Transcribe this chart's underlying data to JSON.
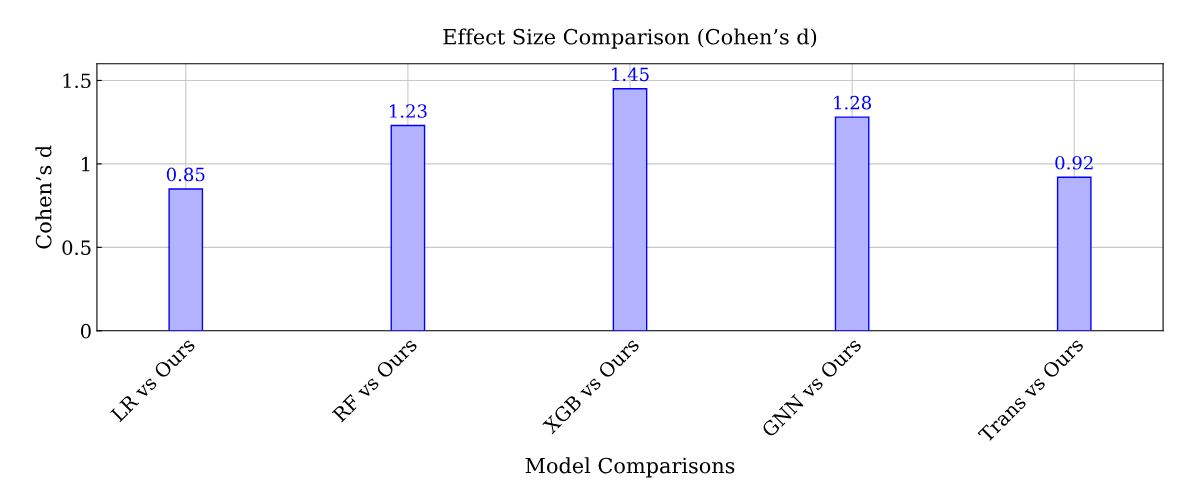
{
  "chart_data": {
    "type": "bar",
    "title": "Effect Size Comparison (Cohen’s d)",
    "xlabel": "Model Comparisons",
    "ylabel": "Cohen’s d",
    "categories": [
      "LR vs Ours",
      "RF vs Ours",
      "XGB vs Ours",
      "GNN vs Ours",
      "Trans vs Ours"
    ],
    "series": [
      {
        "color": "#b3b3ff",
        "values": [
          0.85,
          1.23,
          1.45,
          1.28,
          0.92
        ]
      }
    ],
    "ylim": [
      0,
      1.6
    ],
    "yticks": [
      0,
      0.5,
      1,
      1.5
    ],
    "grid": true,
    "data_labels": true
  }
}
